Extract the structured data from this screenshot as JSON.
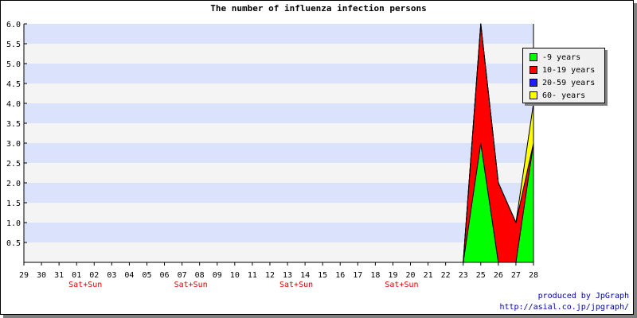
{
  "chart_data": {
    "type": "area",
    "title": "The number of influenza infection persons",
    "categories": [
      "29",
      "30",
      "31",
      "01",
      "02",
      "03",
      "04",
      "05",
      "06",
      "07",
      "08",
      "09",
      "10",
      "11",
      "12",
      "13",
      "14",
      "15",
      "16",
      "17",
      "18",
      "19",
      "20",
      "21",
      "22",
      "23",
      "25",
      "26",
      "27",
      "28"
    ],
    "weekend_label": "Sat+Sun",
    "weekend_under": [
      "01",
      "07",
      "13",
      "19"
    ],
    "ylim": [
      0,
      6
    ],
    "yticks": [
      "0.5",
      "1.0",
      "1.5",
      "2.0",
      "2.5",
      "3.0",
      "3.5",
      "4.0",
      "4.5",
      "5.0",
      "5.5",
      "6.0"
    ],
    "stacked": true,
    "series": [
      {
        "name": "-9 years",
        "color": "#00ff00",
        "values": [
          0,
          0,
          0,
          0,
          0,
          0,
          0,
          0,
          0,
          0,
          0,
          0,
          0,
          0,
          0,
          0,
          0,
          0,
          0,
          0,
          0,
          0,
          0,
          0,
          0,
          0,
          3,
          0,
          0,
          3
        ]
      },
      {
        "name": "10-19 years",
        "color": "#ff0000",
        "values": [
          0,
          0,
          0,
          0,
          0,
          0,
          0,
          0,
          0,
          0,
          0,
          0,
          0,
          0,
          0,
          0,
          0,
          0,
          0,
          0,
          0,
          0,
          0,
          0,
          0,
          0,
          3,
          2,
          1,
          0
        ]
      },
      {
        "name": "20-59 years",
        "color": "#2020ff",
        "values": [
          0,
          0,
          0,
          0,
          0,
          0,
          0,
          0,
          0,
          0,
          0,
          0,
          0,
          0,
          0,
          0,
          0,
          0,
          0,
          0,
          0,
          0,
          0,
          0,
          0,
          0,
          0,
          0,
          0,
          0
        ]
      },
      {
        "name": "60- years",
        "color": "#ffff00",
        "values": [
          0,
          0,
          0,
          0,
          0,
          0,
          0,
          0,
          0,
          0,
          0,
          0,
          0,
          0,
          0,
          0,
          0,
          0,
          0,
          0,
          0,
          0,
          0,
          0,
          0,
          0,
          0,
          0,
          0,
          1
        ]
      }
    ],
    "legend_position": "top-right",
    "band_colors": [
      "#f4f4f4",
      "#dae3fb"
    ],
    "weekend_color": "#e00000"
  },
  "credit": {
    "line1": "produced by JpGraph",
    "line2": "http://asial.co.jp/jpgraph/"
  }
}
